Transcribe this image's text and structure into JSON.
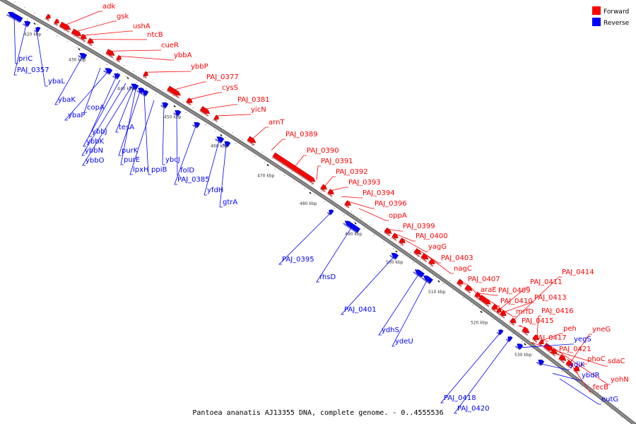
{
  "title": "Pantoea ananatis AJ13355 DNA, complete genome. - 0..4555536",
  "legend": [
    {
      "label": "Forward",
      "color": "#ff0000"
    },
    {
      "label": "Reverse",
      "color": "#0000ff"
    }
  ],
  "colors": {
    "forward": "#ff0000",
    "reverse": "#0000ff",
    "axis": "#8c8c8c"
  },
  "ticks": [
    "420 kbp",
    "430 kbp",
    "440 kbp",
    "450 kbp",
    "460 kbp",
    "470 kbp",
    "480 kbp",
    "490 kbp",
    "500 kbp",
    "510 kbp",
    "520 kbp",
    "530 kbp"
  ],
  "forward_genes": [
    "adk",
    "gsk",
    "ushA",
    "ntcB",
    "cueR",
    "ybbA",
    "ybbP",
    "PAJ_0377",
    "cysS",
    "PAJ_0381",
    "yicN",
    "arnT",
    "PAJ_0389",
    "PAJ_0390",
    "PAJ_0391",
    "PAJ_0392",
    "PAJ_0393",
    "PAJ_0394",
    "PAJ_0396",
    "oppA",
    "PAJ_0399",
    "PAJ_0400",
    "yagG",
    "PAJ_0403",
    "nagC",
    "PAJ_0407",
    "araE",
    "PAJ_0409",
    "PAJ_0410",
    "mrfD",
    "PAJ_0411",
    "PAJ_0413",
    "PAJ_0414",
    "PAJ_0415",
    "PAJ_0416",
    "peh",
    "PAJ_0417",
    "PAJ_0421",
    "yneG",
    "phoC",
    "sdaC",
    "fecB",
    "yohN"
  ],
  "reverse_genes": [
    "priC",
    "PAJ_0357",
    "ybaL",
    "ybaK",
    "copA",
    "ybaP",
    "ybbJ",
    "tesA",
    "ybbK",
    "ybbN",
    "ybbO",
    "purK",
    "ppiB",
    "purE",
    "lpxH",
    "ybcJ",
    "folD",
    "PAJ_0385",
    "yfdH",
    "gtrA",
    "PAJ_0395",
    "rhsD",
    "PAJ_0401",
    "ydhS",
    "ydeU",
    "PAJ_0418",
    "PAJ_0420",
    "yegS",
    "ydiK",
    "ybdR",
    "eutG"
  ]
}
